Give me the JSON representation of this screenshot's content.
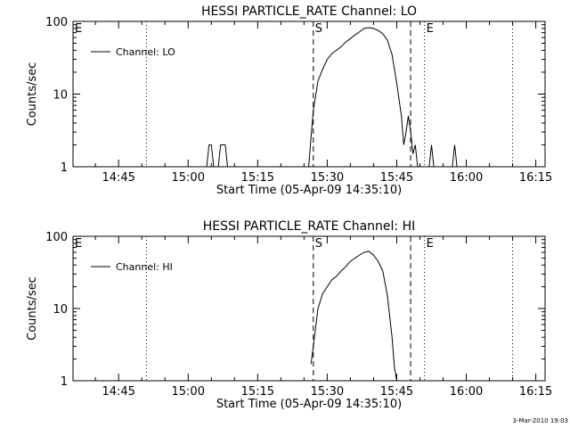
{
  "footer": {
    "timestamp": "3-Mar-2010 19:03"
  },
  "chart_data": [
    {
      "type": "line",
      "title": "HESSI PARTICLE_RATE Channel: LO",
      "xlabel": "Start Time (05-Apr-09 14:35:10)",
      "ylabel": "Counts/sec",
      "x_unit": "minutes after 14:35:10",
      "x_tick_labels": [
        "14:45",
        "15:00",
        "15:15",
        "15:30",
        "15:45",
        "16:00",
        "16:15"
      ],
      "y_tick_labels": [
        "1",
        "10",
        "100"
      ],
      "y_scale": "log",
      "xlim": [
        "14:35:10",
        "16:17"
      ],
      "ylim": [
        1,
        100
      ],
      "legend": {
        "position": "top-left",
        "entries": [
          "Channel: LO"
        ]
      },
      "annotations": [
        {
          "label": "E",
          "time": "14:35:10",
          "style": "none"
        },
        {
          "label": "",
          "time": "14:51",
          "style": "dotted"
        },
        {
          "label": "S",
          "time": "15:27",
          "style": "dashed"
        },
        {
          "label": "",
          "time": "15:48",
          "style": "dashed"
        },
        {
          "label": "E",
          "time": "15:51",
          "style": "dotted"
        },
        {
          "label": "",
          "time": "16:10",
          "style": "dotted"
        }
      ],
      "series": [
        {
          "name": "Channel: LO",
          "segments": [
            [
              [
                "15:04",
                1
              ],
              [
                "15:04.5",
                2
              ],
              [
                "15:05",
                2
              ],
              [
                "15:05.5",
                1
              ]
            ],
            [
              [
                "15:06.5",
                1
              ],
              [
                "15:07",
                2
              ],
              [
                "15:08",
                2
              ],
              [
                "15:08.5",
                1
              ]
            ],
            [
              [
                "15:26",
                1
              ],
              [
                "15:26.5",
                2.5
              ],
              [
                "15:27",
                6
              ],
              [
                "15:28",
                15
              ],
              [
                "15:29",
                22
              ],
              [
                "15:30",
                30
              ],
              [
                "15:31",
                36
              ],
              [
                "15:32",
                40
              ],
              [
                "15:33",
                45
              ],
              [
                "15:34",
                52
              ],
              [
                "15:35",
                58
              ],
              [
                "15:36",
                65
              ],
              [
                "15:37",
                72
              ],
              [
                "15:38",
                80
              ],
              [
                "15:39",
                82
              ],
              [
                "15:40",
                80
              ],
              [
                "15:41",
                75
              ],
              [
                "15:42",
                68
              ],
              [
                "15:43",
                55
              ],
              [
                "15:44",
                35
              ],
              [
                "15:45",
                14
              ],
              [
                "15:46",
                5
              ],
              [
                "15:46.5",
                2
              ],
              [
                "15:47",
                3
              ],
              [
                "15:47.5",
                5
              ],
              [
                "15:48",
                3
              ],
              [
                "15:48.5",
                1.5
              ],
              [
                "15:49",
                2
              ],
              [
                "15:49.5",
                1
              ]
            ],
            [
              [
                "15:52",
                1
              ],
              [
                "15:52.5",
                2
              ],
              [
                "15:53",
                1
              ]
            ],
            [
              [
                "15:57",
                1
              ],
              [
                "15:57.5",
                2
              ],
              [
                "15:58",
                1
              ]
            ]
          ]
        }
      ]
    },
    {
      "type": "line",
      "title": "HESSI PARTICLE_RATE Channel: HI",
      "xlabel": "Start Time (05-Apr-09 14:35:10)",
      "ylabel": "Counts/sec",
      "x_unit": "minutes after 14:35:10",
      "x_tick_labels": [
        "14:45",
        "15:00",
        "15:15",
        "15:30",
        "15:45",
        "16:00",
        "16:15"
      ],
      "y_tick_labels": [
        "1",
        "10",
        "100"
      ],
      "y_scale": "log",
      "xlim": [
        "14:35:10",
        "16:17"
      ],
      "ylim": [
        1,
        100
      ],
      "legend": {
        "position": "top-left",
        "entries": [
          "Channel: HI"
        ]
      },
      "annotations": [
        {
          "label": "E",
          "time": "14:35:10",
          "style": "none"
        },
        {
          "label": "",
          "time": "14:51",
          "style": "dotted"
        },
        {
          "label": "S",
          "time": "15:27",
          "style": "dashed"
        },
        {
          "label": "",
          "time": "15:48",
          "style": "dashed"
        },
        {
          "label": "E",
          "time": "15:51",
          "style": "dotted"
        },
        {
          "label": "",
          "time": "16:10",
          "style": "dotted"
        }
      ],
      "series": [
        {
          "name": "Channel: HI",
          "segments": [
            [
              [
                "15:26.5",
                1.7
              ],
              [
                "15:27",
                3
              ],
              [
                "15:28",
                10
              ],
              [
                "15:29",
                16
              ],
              [
                "15:30",
                20
              ],
              [
                "15:31",
                25
              ],
              [
                "15:32",
                28
              ],
              [
                "15:33",
                33
              ],
              [
                "15:34",
                38
              ],
              [
                "15:35",
                45
              ],
              [
                "15:36",
                50
              ],
              [
                "15:37",
                55
              ],
              [
                "15:38",
                60
              ],
              [
                "15:39",
                62
              ],
              [
                "15:40",
                55
              ],
              [
                "15:41",
                45
              ],
              [
                "15:42",
                33
              ],
              [
                "15:43",
                15
              ],
              [
                "15:44",
                4
              ],
              [
                "15:44.5",
                1.5
              ],
              [
                "15:45",
                1
              ]
            ]
          ]
        }
      ]
    }
  ]
}
